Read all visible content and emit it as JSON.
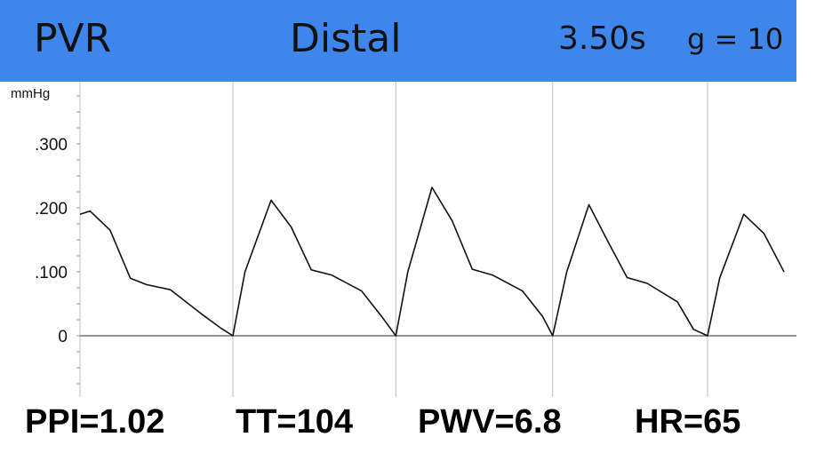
{
  "header": {
    "title": "PVR",
    "mode": "Distal",
    "sweep": "3.50s",
    "gain": "g = 10",
    "background": "#3f86ec"
  },
  "chart_data": {
    "type": "line",
    "ylabel": "mmHg",
    "yticks": [
      ".300",
      ".200",
      ".100",
      "0"
    ],
    "ylim": [
      -0.12,
      0.4
    ],
    "xlim": [
      0,
      3.5
    ],
    "grid": "vertical beat markers",
    "beat_markers_s": [
      0.76,
      1.57,
      2.35,
      3.12
    ],
    "series": [
      {
        "x": [
          0.0,
          0.05,
          0.15,
          0.25,
          0.33,
          0.45,
          0.6,
          0.7,
          0.76,
          0.82,
          0.95,
          1.05,
          1.15,
          1.25,
          1.4,
          1.5,
          1.57,
          1.63,
          1.75,
          1.85,
          1.95,
          2.05,
          2.2,
          2.3,
          2.35,
          2.42,
          2.53,
          2.62,
          2.72,
          2.82,
          2.97,
          3.05,
          3.12,
          3.18,
          3.3,
          3.4,
          3.5
        ],
        "y": [
          0.19,
          0.195,
          0.165,
          0.09,
          0.08,
          0.072,
          0.035,
          0.012,
          0.0,
          0.1,
          0.212,
          0.17,
          0.103,
          0.095,
          0.07,
          0.03,
          0.0,
          0.1,
          0.232,
          0.18,
          0.104,
          0.095,
          0.07,
          0.03,
          0.0,
          0.1,
          0.205,
          0.15,
          0.091,
          0.082,
          0.053,
          0.01,
          0.0,
          0.09,
          0.19,
          0.16,
          0.1
        ]
      }
    ]
  },
  "footer": {
    "ppi": "PPI=1.02",
    "tt": "TT=104",
    "pwv": "PWV=6.8",
    "hr": "HR=65"
  }
}
